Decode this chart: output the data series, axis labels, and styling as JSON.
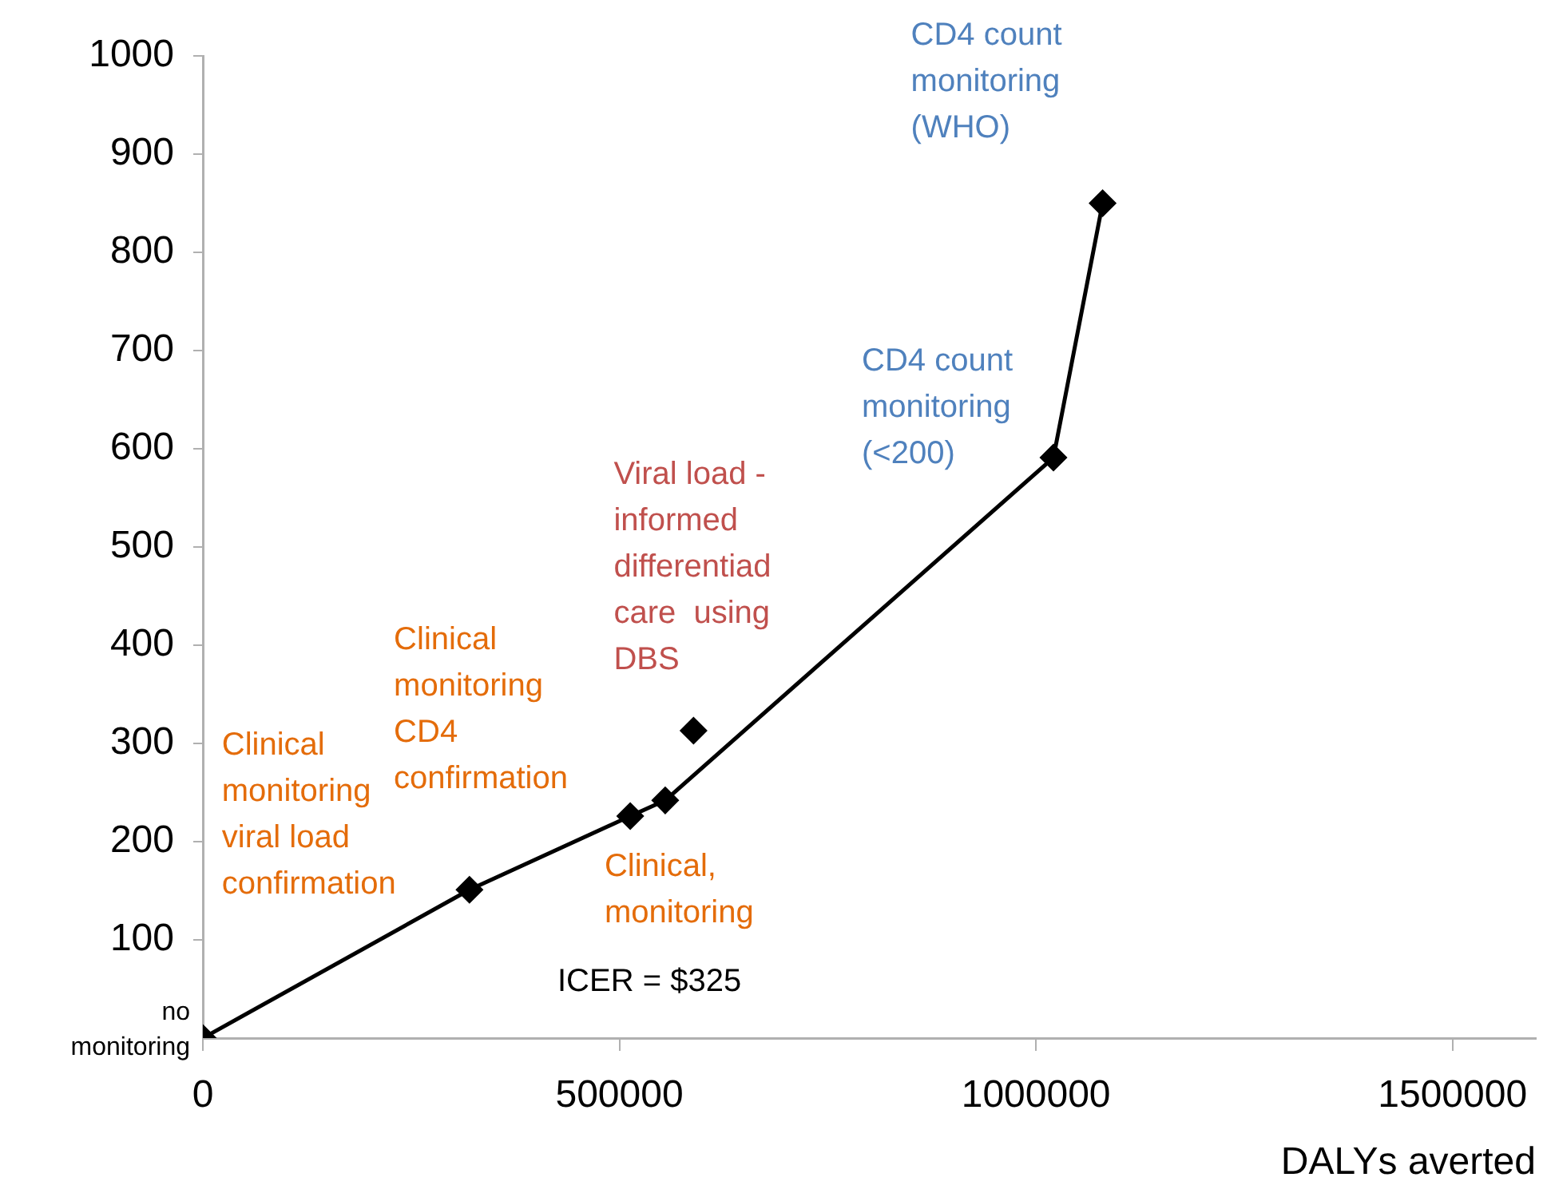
{
  "chart_data": {
    "type": "scatter",
    "xlabel": "DALYs averted",
    "xlim": [
      0,
      1600000
    ],
    "xticks": [
      0,
      500000,
      1000000,
      1500000
    ],
    "ylim": [
      0,
      1000
    ],
    "yticks": [
      100,
      200,
      300,
      400,
      500,
      600,
      700,
      800,
      900,
      1000
    ],
    "grid": false,
    "legend": false,
    "series": [
      {
        "type": "scatter",
        "color": "#000000",
        "marker": "diamond",
        "x": [
          0,
          320000,
          513000,
          555000,
          589000,
          1021000,
          1080000
        ],
        "values": [
          0,
          151,
          226,
          242,
          313,
          591,
          850
        ]
      },
      {
        "type": "line",
        "color": "#000000",
        "marker": "none",
        "line_style": "solid",
        "x": [
          0,
          320000,
          513000,
          555000,
          1021000,
          1080000
        ],
        "values": [
          0,
          151,
          226,
          242,
          591,
          850
        ]
      }
    ],
    "annotations": [
      {
        "text": "no\nmonitoring",
        "x": 0,
        "y": 0
      },
      {
        "text": "Clinical\nmonitoring\nviral load\nconfirmation",
        "x": 320000,
        "y": 151
      },
      {
        "text": "Clinical\nmonitoring\nCD4\nconfirmation",
        "x": 513000,
        "y": 226
      },
      {
        "text": "Clinical,\nmonitoring",
        "x": 555000,
        "y": 242
      },
      {
        "text": "Viral load -\ninformed\ndifferentiad\ncare  using\nDBS",
        "x": 589000,
        "y": 313
      },
      {
        "text": "CD4 count\nmonitoring\n(<200)",
        "x": 1021000,
        "y": 591
      },
      {
        "text": "CD4 count\nmonitoring\n(WHO)",
        "x": 1080000,
        "y": 850
      },
      "ICER = $325"
    ]
  }
}
